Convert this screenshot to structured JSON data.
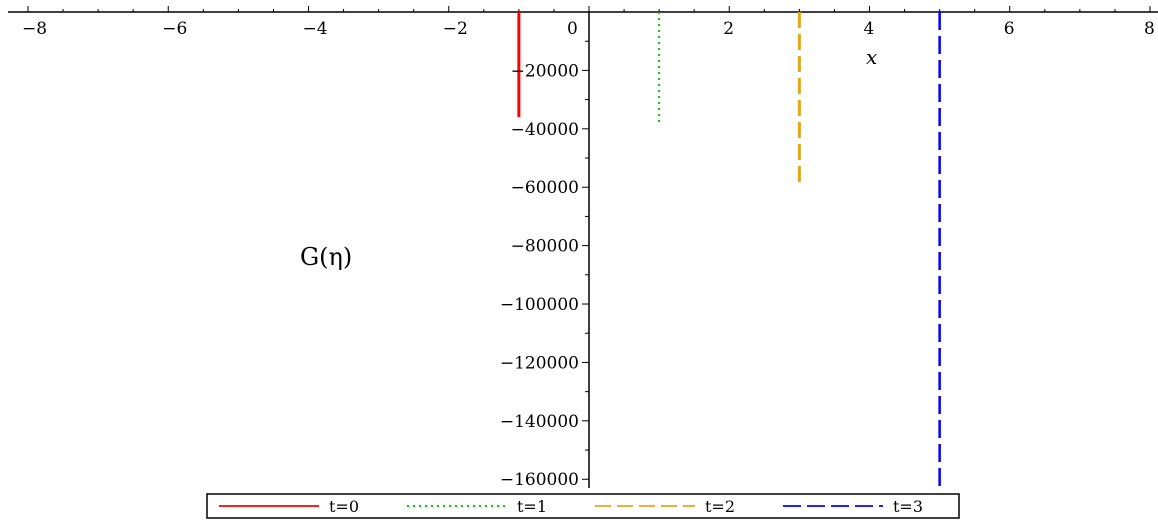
{
  "chart_data": {
    "type": "line",
    "xlabel": "x",
    "ylabel": "G(η)",
    "xlim": [
      -8,
      8
    ],
    "ylim": [
      -163000,
      0
    ],
    "x_ticks": [
      -8,
      -6,
      -4,
      -2,
      0,
      2,
      4,
      6,
      8
    ],
    "x_tick_labels": [
      "−8",
      "−6",
      "−4",
      "−2",
      "0",
      "2",
      "4",
      "6",
      "8"
    ],
    "y_ticks": [
      -20000,
      -40000,
      -60000,
      -80000,
      -100000,
      -120000,
      -140000,
      -160000
    ],
    "y_tick_labels": [
      "−20000",
      "−40000",
      "−60000",
      "−80000",
      "−100000",
      "−120000",
      "−140000",
      "−160000"
    ],
    "grid": false,
    "legend_position": "bottom",
    "series": [
      {
        "name": "t=0",
        "color": "#ff0000",
        "style": "solid",
        "x": [
          -1,
          -1
        ],
        "y": [
          0,
          -36000
        ]
      },
      {
        "name": "t=1",
        "color": "#00cc00",
        "style": "dotted",
        "x": [
          1,
          1
        ],
        "y": [
          0,
          -39000
        ]
      },
      {
        "name": "t=2",
        "color": "#e6a817",
        "style": "dashed",
        "x": [
          3,
          3
        ],
        "y": [
          0,
          -59000
        ]
      },
      {
        "name": "t=3",
        "color": "#0000ff",
        "style": "dashdot",
        "x": [
          5,
          5
        ],
        "y": [
          0,
          -163000
        ]
      }
    ]
  }
}
